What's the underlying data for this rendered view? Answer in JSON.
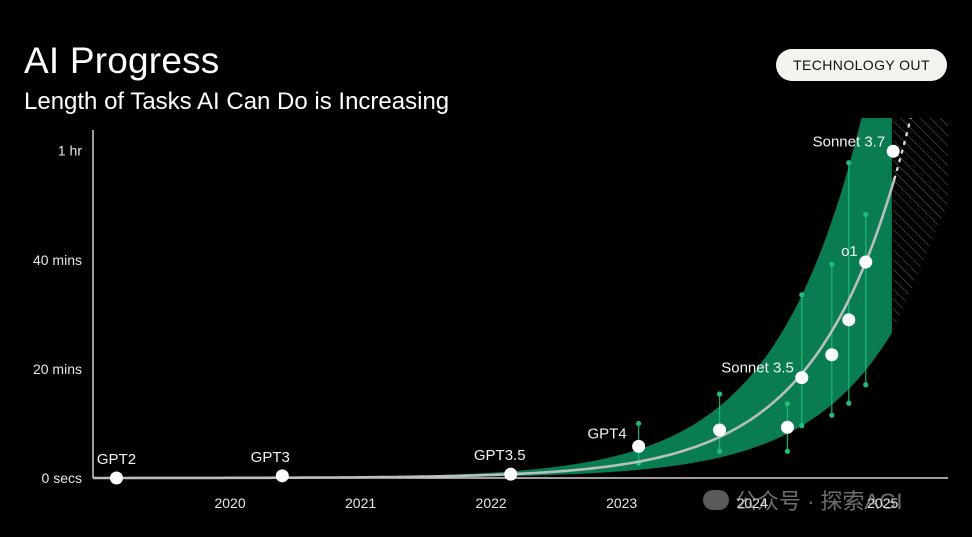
{
  "header": {
    "title": "AI Progress",
    "subtitle": "Length of Tasks AI Can Do is Increasing",
    "badge": "TECHNOLOGY OUT"
  },
  "watermark": {
    "text": "公众号 · 探索AGI",
    "icon": "wechat-icon"
  },
  "colors": {
    "background": "#000000",
    "band": "#0a8a5a",
    "band_dark": "#0a6b45",
    "trend": "#b8c0bc",
    "points": "#ffffff",
    "whisker": "#1fbf7a"
  },
  "chart_data": {
    "type": "scatter",
    "title": "AI Progress",
    "subtitle": "Length of Tasks AI Can Do is Increasing",
    "x_ticks": [
      2020,
      2021,
      2022,
      2023,
      2024,
      2025
    ],
    "y_ticks": [
      {
        "value": 0,
        "label": "0 secs"
      },
      {
        "value": 20,
        "label": "20 mins"
      },
      {
        "value": 40,
        "label": "40 mins"
      },
      {
        "value": 60,
        "label": "1 hr"
      }
    ],
    "xlim": [
      2019.0,
      2025.55
    ],
    "ylim": [
      0,
      66
    ],
    "points": [
      {
        "x": 2019.18,
        "y": 0.0,
        "label": "GPT2"
      },
      {
        "x": 2020.45,
        "y": 0.4,
        "label": "GPT3"
      },
      {
        "x": 2022.2,
        "y": 0.7,
        "label": "GPT3.5"
      },
      {
        "x": 2023.18,
        "y": 5.8,
        "label": "GPT4"
      },
      {
        "x": 2023.8,
        "y": 8.8,
        "label": ""
      },
      {
        "x": 2024.32,
        "y": 9.3,
        "label": ""
      },
      {
        "x": 2024.43,
        "y": 18.4,
        "label": "Sonnet 3.5"
      },
      {
        "x": 2024.66,
        "y": 22.6,
        "label": ""
      },
      {
        "x": 2024.79,
        "y": 29.0,
        "label": ""
      },
      {
        "x": 2024.92,
        "y": 39.6,
        "label": "o1"
      },
      {
        "x": 2025.13,
        "y": 59.9,
        "label": "Sonnet 3.7"
      }
    ],
    "whiskers": [
      {
        "x": 2023.18,
        "low": 2.7,
        "high": 10.0
      },
      {
        "x": 2023.8,
        "low": 4.9,
        "high": 15.4
      },
      {
        "x": 2024.32,
        "low": 4.9,
        "high": 13.6
      },
      {
        "x": 2024.43,
        "low": 9.6,
        "high": 33.6
      },
      {
        "x": 2024.66,
        "low": 11.5,
        "high": 39.2
      },
      {
        "x": 2024.79,
        "low": 13.7,
        "high": 57.8
      },
      {
        "x": 2024.92,
        "low": 17.1,
        "high": 48.3
      }
    ],
    "trend_end_x": 2025.48,
    "projection_start_x": 2025.13,
    "grid": false
  }
}
